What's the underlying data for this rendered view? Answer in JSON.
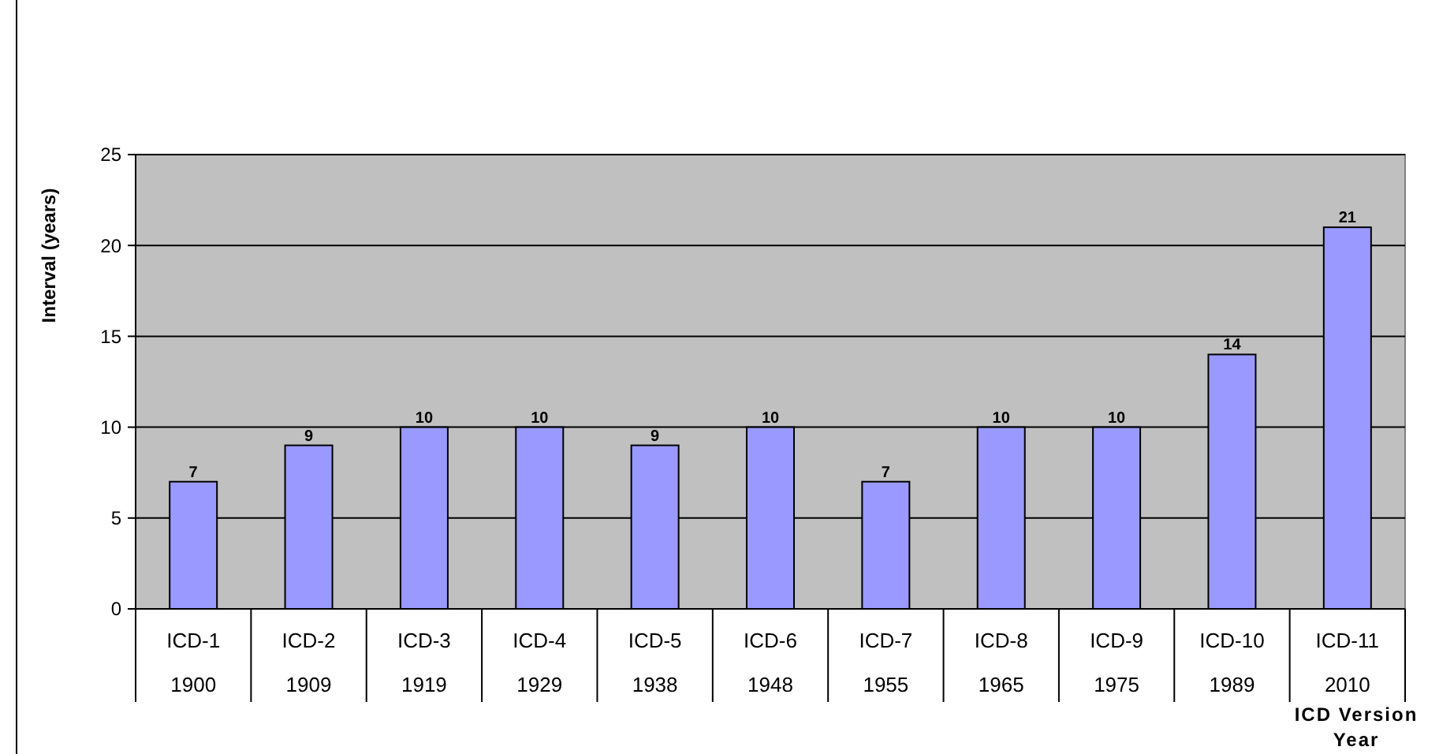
{
  "chart_data": {
    "type": "bar",
    "ylabel": "Interval (years)",
    "xlabel": "ICD Version Year",
    "categories": [
      "ICD-1\n1900",
      "ICD-2\n1909",
      "ICD-3\n1919",
      "ICD-4\n1929",
      "ICD-5\n1938",
      "ICD-6\n1948",
      "ICD-7\n1955",
      "ICD-8\n1965",
      "ICD-9\n1975",
      "ICD-10\n1989",
      "ICD-11\n2010"
    ],
    "values": [
      7,
      9,
      10,
      10,
      9,
      10,
      7,
      10,
      10,
      14,
      21
    ],
    "color": "#9999ff",
    "ylim": [
      0,
      25
    ],
    "yticks": [
      0,
      5,
      10,
      15,
      20,
      25
    ],
    "grid": "y",
    "data_labels": true
  }
}
